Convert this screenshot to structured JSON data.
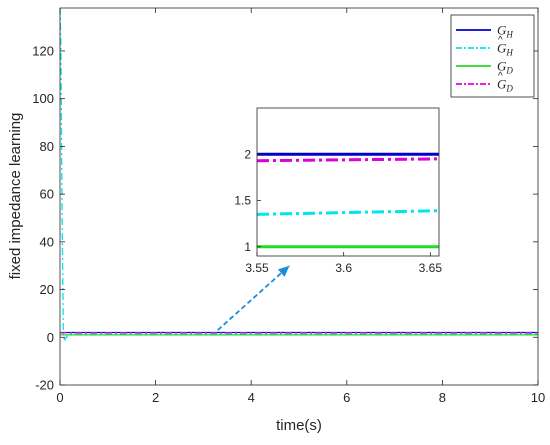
{
  "chart_data": {
    "type": "line",
    "xlabel": "time(s)",
    "ylabel": "fixed impedance learning",
    "xlim": [
      0,
      10
    ],
    "ylim": [
      -20,
      138
    ],
    "x_ticks": [
      "0",
      "2",
      "4",
      "6",
      "8",
      "10"
    ],
    "y_ticks": [
      "-20",
      "0",
      "20",
      "40",
      "60",
      "80",
      "100",
      "120"
    ],
    "grid": false,
    "legend_position": "top-right",
    "colors": {
      "G_H": "#0000cc",
      "Ghat_H": "#00e5ee",
      "G_D": "#22dd22",
      "Ghat_D": "#dd00dd",
      "arrow": "#1a8cdc"
    },
    "series": [
      {
        "name": "G_H",
        "legend": {
          "base": "G",
          "sub": "H",
          "hat": false
        },
        "style": "solid",
        "x": [
          0,
          10
        ],
        "y": [
          2,
          2
        ]
      },
      {
        "name": "Ĝ_H",
        "legend": {
          "base": "G",
          "sub": "H",
          "hat": true
        },
        "style": "dashdot",
        "x": [
          0,
          0.02,
          0.04,
          0.07,
          0.1,
          0.15,
          0.2,
          0.3,
          10
        ],
        "y": [
          138,
          120,
          60,
          0,
          -1,
          0.5,
          1.4,
          1.37,
          1.4
        ]
      },
      {
        "name": "G_D",
        "legend": {
          "base": "G",
          "sub": "D",
          "hat": false
        },
        "style": "solid",
        "x": [
          0,
          10
        ],
        "y": [
          1,
          1
        ]
      },
      {
        "name": "Ĝ_D",
        "legend": {
          "base": "G",
          "sub": "D",
          "hat": true
        },
        "style": "dashdot",
        "x": [
          0,
          10
        ],
        "y": [
          1.93,
          1.93
        ]
      }
    ],
    "inset": {
      "xlim": [
        3.55,
        3.655
      ],
      "ylim": [
        0.9,
        2.5
      ],
      "x_ticks": [
        "3.55",
        "3.6",
        "3.65"
      ],
      "y_ticks": [
        "1",
        "1.5",
        "2"
      ],
      "series": [
        {
          "name": "G_H",
          "x": [
            3.55,
            3.655
          ],
          "y": [
            2.0,
            2.0
          ]
        },
        {
          "name": "Ĝ_H",
          "x": [
            3.55,
            3.655
          ],
          "y": [
            1.35,
            1.39
          ]
        },
        {
          "name": "G_D",
          "x": [
            3.55,
            3.655
          ],
          "y": [
            1.0,
            1.0
          ]
        },
        {
          "name": "Ĝ_D",
          "x": [
            3.55,
            3.655
          ],
          "y": [
            1.93,
            1.95
          ]
        }
      ],
      "arrow": {
        "from": [
          3.3,
          3
        ],
        "to": [
          4.8,
          30
        ]
      }
    }
  }
}
